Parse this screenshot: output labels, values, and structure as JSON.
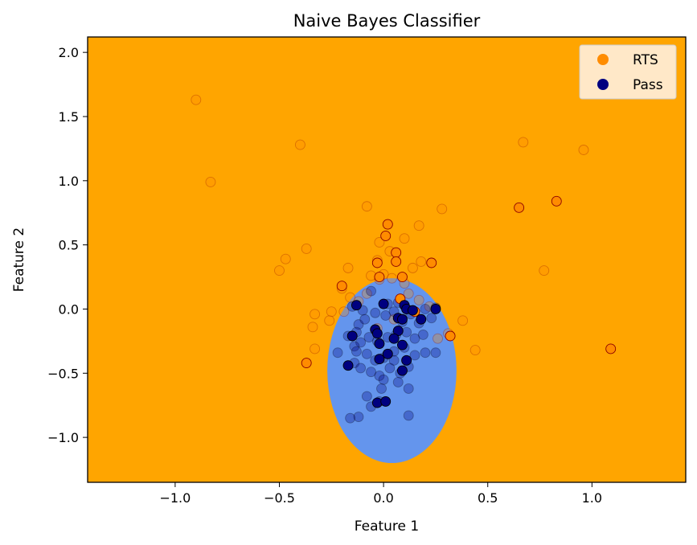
{
  "chart_data": {
    "type": "scatter",
    "title": "Naive Bayes Classifier",
    "xlabel": "Feature 1",
    "ylabel": "Feature 2",
    "xlim": [
      -1.42,
      1.45
    ],
    "ylim": [
      -1.35,
      2.12
    ],
    "xticks": [
      {
        "value": -1.0,
        "label": "−1.0"
      },
      {
        "value": -0.5,
        "label": "−0.5"
      },
      {
        "value": 0.0,
        "label": "0.0"
      },
      {
        "value": 0.5,
        "label": "0.5"
      },
      {
        "value": 1.0,
        "label": "1.0"
      }
    ],
    "yticks": [
      {
        "value": -1.0,
        "label": "−1.0"
      },
      {
        "value": -0.5,
        "label": "−0.5"
      },
      {
        "value": 0.0,
        "label": "0.0"
      },
      {
        "value": 0.5,
        "label": "0.5"
      },
      {
        "value": 1.0,
        "label": "1.0"
      },
      {
        "value": 1.5,
        "label": "1.5"
      },
      {
        "value": 2.0,
        "label": "2.0"
      }
    ],
    "grid": false,
    "legend_position": "top-right",
    "background_region": {
      "color": "#FFA500"
    },
    "decision_region": {
      "class": "Pass",
      "color": "#6495ED",
      "shape": "ellipse",
      "center": [
        0.04,
        -0.48
      ],
      "half_width": 0.31,
      "half_height": 0.72
    },
    "series": [
      {
        "name": "RTS",
        "color": "#FF8C00",
        "edge_color": "#8B0000",
        "points_train": [
          [
            -0.9,
            1.63
          ],
          [
            -0.4,
            1.28
          ],
          [
            -0.83,
            0.99
          ],
          [
            0.67,
            1.3
          ],
          [
            0.96,
            1.24
          ],
          [
            -0.08,
            0.8
          ],
          [
            0.28,
            0.78
          ],
          [
            0.17,
            0.65
          ],
          [
            0.1,
            0.55
          ],
          [
            -0.37,
            0.47
          ],
          [
            -0.47,
            0.39
          ],
          [
            -0.5,
            0.3
          ],
          [
            -0.02,
            0.52
          ],
          [
            0.03,
            0.45
          ],
          [
            -0.03,
            0.38
          ],
          [
            -0.17,
            0.32
          ],
          [
            0.77,
            0.3
          ],
          [
            0.0,
            0.27
          ],
          [
            -0.06,
            0.26
          ],
          [
            -0.02,
            0.23
          ],
          [
            0.04,
            0.24
          ],
          [
            0.1,
            0.2
          ],
          [
            -0.2,
            0.16
          ],
          [
            -0.16,
            0.09
          ],
          [
            -0.12,
            0.06
          ],
          [
            -0.08,
            0.12
          ],
          [
            0.12,
            0.12
          ],
          [
            0.17,
            0.07
          ],
          [
            0.22,
            0.02
          ],
          [
            0.18,
            0.37
          ],
          [
            0.14,
            0.32
          ],
          [
            -0.33,
            -0.04
          ],
          [
            -0.25,
            -0.02
          ],
          [
            -0.26,
            -0.09
          ],
          [
            -0.19,
            -0.02
          ],
          [
            -0.34,
            -0.14
          ],
          [
            0.38,
            -0.09
          ],
          [
            0.44,
            -0.32
          ],
          [
            -0.33,
            -0.31
          ],
          [
            -0.03,
            -0.15
          ],
          [
            0.05,
            -0.08
          ],
          [
            0.08,
            0.08
          ],
          [
            0.15,
            -0.02
          ],
          [
            0.26,
            -0.23
          ],
          [
            0.31,
            -0.19
          ]
        ],
        "points_test": [
          [
            0.02,
            0.66
          ],
          [
            0.01,
            0.57
          ],
          [
            0.06,
            0.44
          ],
          [
            0.06,
            0.37
          ],
          [
            0.23,
            0.36
          ],
          [
            -0.03,
            0.36
          ],
          [
            -0.02,
            0.25
          ],
          [
            0.09,
            0.25
          ],
          [
            -0.2,
            0.18
          ],
          [
            0.08,
            0.08
          ],
          [
            0.15,
            -0.02
          ],
          [
            0.32,
            -0.21
          ],
          [
            -0.37,
            -0.42
          ],
          [
            0.65,
            0.79
          ],
          [
            0.83,
            0.84
          ],
          [
            1.09,
            -0.31
          ]
        ]
      },
      {
        "name": "Pass",
        "color": "#000080",
        "edge_color": "#000000",
        "points_train": [
          [
            -0.06,
            0.14
          ],
          [
            0.02,
            0.04
          ],
          [
            0.07,
            0.05
          ],
          [
            -0.1,
            -0.01
          ],
          [
            -0.15,
            0.02
          ],
          [
            -0.12,
            -0.12
          ],
          [
            -0.13,
            -0.18
          ],
          [
            -0.04,
            -0.03
          ],
          [
            0.01,
            -0.05
          ],
          [
            0.05,
            -0.02
          ],
          [
            0.09,
            -0.1
          ],
          [
            0.13,
            -0.04
          ],
          [
            0.17,
            -0.11
          ],
          [
            0.2,
            0.0
          ],
          [
            0.23,
            -0.07
          ],
          [
            0.25,
            0.01
          ],
          [
            0.19,
            -0.2
          ],
          [
            0.15,
            -0.23
          ],
          [
            0.11,
            -0.18
          ],
          [
            0.06,
            -0.2
          ],
          [
            0.02,
            -0.22
          ],
          [
            -0.03,
            -0.25
          ],
          [
            -0.07,
            -0.22
          ],
          [
            -0.11,
            -0.26
          ],
          [
            -0.14,
            -0.29
          ],
          [
            -0.17,
            -0.21
          ],
          [
            -0.22,
            -0.34
          ],
          [
            -0.13,
            -0.33
          ],
          [
            -0.08,
            -0.35
          ],
          [
            -0.04,
            -0.4
          ],
          [
            0.0,
            -0.38
          ],
          [
            0.05,
            -0.33
          ],
          [
            0.1,
            -0.3
          ],
          [
            0.15,
            -0.36
          ],
          [
            0.2,
            -0.34
          ],
          [
            0.25,
            -0.34
          ],
          [
            -0.14,
            -0.42
          ],
          [
            -0.11,
            -0.46
          ],
          [
            -0.06,
            -0.49
          ],
          [
            -0.02,
            -0.52
          ],
          [
            0.03,
            -0.46
          ],
          [
            0.08,
            -0.5
          ],
          [
            0.12,
            -0.45
          ],
          [
            0.0,
            -0.55
          ],
          [
            0.07,
            -0.57
          ],
          [
            0.12,
            -0.62
          ],
          [
            -0.01,
            -0.62
          ],
          [
            -0.08,
            -0.68
          ],
          [
            -0.06,
            -0.76
          ],
          [
            -0.12,
            -0.84
          ],
          [
            -0.16,
            -0.85
          ],
          [
            0.12,
            -0.83
          ],
          [
            -0.02,
            -0.72
          ],
          [
            0.05,
            -0.4
          ],
          [
            -0.09,
            -0.08
          ]
        ],
        "points_test": [
          [
            -0.13,
            0.03
          ],
          [
            0.0,
            0.04
          ],
          [
            0.1,
            0.03
          ],
          [
            0.11,
            0.0
          ],
          [
            0.14,
            -0.01
          ],
          [
            0.07,
            -0.07
          ],
          [
            0.09,
            -0.08
          ],
          [
            0.18,
            -0.08
          ],
          [
            0.25,
            0.0
          ],
          [
            -0.15,
            -0.21
          ],
          [
            -0.04,
            -0.16
          ],
          [
            -0.03,
            -0.19
          ],
          [
            0.07,
            -0.17
          ],
          [
            0.05,
            -0.23
          ],
          [
            -0.02,
            -0.27
          ],
          [
            0.09,
            -0.28
          ],
          [
            0.02,
            -0.35
          ],
          [
            -0.02,
            -0.39
          ],
          [
            0.11,
            -0.4
          ],
          [
            -0.17,
            -0.44
          ],
          [
            0.09,
            -0.48
          ],
          [
            -0.03,
            -0.73
          ],
          [
            0.01,
            -0.72
          ]
        ]
      }
    ]
  }
}
